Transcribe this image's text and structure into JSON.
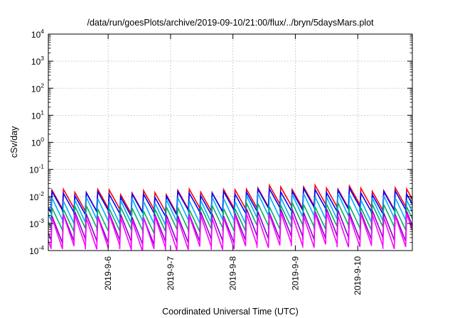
{
  "chart_data": {
    "type": "line",
    "title": "/data/run/goesPlots/archive/2019-09-10/21:00/flux/../bryn/5daysMars.plot",
    "xlabel": "Coordinated Universal Time (UTC)",
    "ylabel": "cSv/day",
    "yscale": "log",
    "ylim": [
      0.0001,
      10000
    ],
    "xlim": [
      "2019-09-05 01:00",
      "2019-09-10 21:00"
    ],
    "grid": true,
    "y_ticks": [
      {
        "base": "10",
        "exp": "-4"
      },
      {
        "base": "10",
        "exp": "-3"
      },
      {
        "base": "10",
        "exp": "-2"
      },
      {
        "base": "10",
        "exp": "-1"
      },
      {
        "base": "10",
        "exp": "0"
      },
      {
        "base": "10",
        "exp": "1"
      },
      {
        "base": "10",
        "exp": "2"
      },
      {
        "base": "10",
        "exp": "3"
      },
      {
        "base": "10",
        "exp": "4"
      }
    ],
    "x_ticks": [
      {
        "label": "2019-9-6",
        "value": "2019-09-06 00:00"
      },
      {
        "label": "2019-9-7",
        "value": "2019-09-07 00:00"
      },
      {
        "label": "2019-9-8",
        "value": "2019-09-08 00:00"
      },
      {
        "label": "2019-9-9",
        "value": "2019-09-09 00:00"
      },
      {
        "label": "2019-9-10",
        "value": "2019-09-10 00:00"
      }
    ],
    "cycle_hours": 4.4,
    "cycle_phase_hours": 1.4,
    "series": [
      {
        "color": "#ff0000",
        "peak": [
          0.016,
          0.014,
          0.016,
          0.022,
          0.022,
          0.018
        ],
        "trough_ratio": 0.2
      },
      {
        "color": "#0000ff",
        "peak": [
          0.013,
          0.011,
          0.013,
          0.017,
          0.017,
          0.014
        ],
        "trough_ratio": 0.2
      },
      {
        "color": "#00aaff",
        "peak": [
          0.008,
          0.007,
          0.008,
          0.011,
          0.011,
          0.009
        ],
        "trough_ratio": 0.15
      },
      {
        "color": "#00b060",
        "peak": [
          0.004,
          0.0035,
          0.004,
          0.005,
          0.005,
          0.0045
        ],
        "trough_ratio": 0.15
      },
      {
        "color": "#8800cc",
        "peak": [
          0.0023,
          0.0019,
          0.0023,
          0.003,
          0.003,
          0.0026
        ],
        "trough_ratio": 0.1
      },
      {
        "color": "#ff00ff",
        "peak": [
          0.0019,
          0.0016,
          0.0018,
          0.0022,
          0.0022,
          0.002
        ],
        "trough_ratio": 0.07
      }
    ]
  }
}
